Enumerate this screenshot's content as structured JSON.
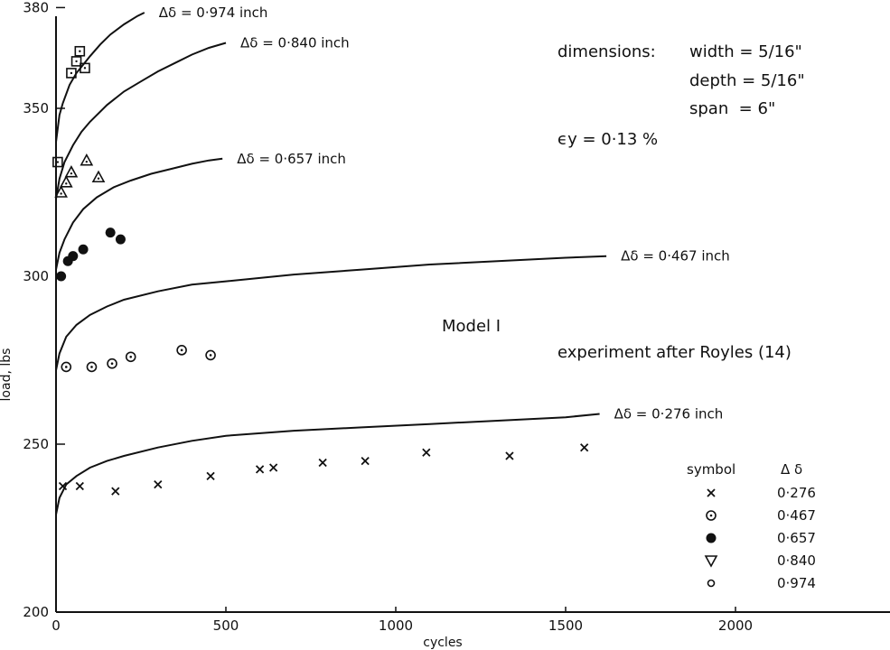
{
  "chart_data": {
    "type": "scatter",
    "xlabel": "cycles",
    "ylabel": "load, lbs",
    "xlim": [
      0,
      2500
    ],
    "ylim": [
      200,
      380
    ],
    "x_ticks": [
      "0",
      "500",
      "1000",
      "1500",
      "2000"
    ],
    "y_ticks": [
      "200",
      "250",
      "300",
      "350",
      "380"
    ],
    "series": [
      {
        "label": "0·276",
        "marker": "x",
        "x": [
          20,
          70,
          175,
          300,
          455,
          600,
          640,
          785,
          910,
          1090,
          1335,
          1555
        ],
        "y": [
          237.5,
          237.5,
          236,
          238,
          240.5,
          242.5,
          243,
          244.5,
          245,
          247.5,
          246.5,
          249
        ]
      },
      {
        "label": "0·467",
        "marker": "circle-dot",
        "x": [
          30,
          105,
          165,
          220,
          370,
          455
        ],
        "y": [
          273,
          273,
          274,
          276,
          278,
          276.5
        ]
      },
      {
        "label": "0·657",
        "marker": "filled-circle",
        "x": [
          15,
          35,
          50,
          80,
          160,
          190
        ],
        "y": [
          300,
          304.5,
          306,
          308,
          313,
          311
        ]
      },
      {
        "label": "0·840",
        "marker": "triangle-dot",
        "x": [
          15,
          30,
          45,
          90,
          125
        ],
        "y": [
          325,
          328,
          331,
          334.5,
          329.5
        ]
      },
      {
        "label": "0·974",
        "marker": "square-dot",
        "x": [
          5,
          45,
          60,
          70,
          85
        ],
        "y": [
          334,
          360.5,
          364,
          367,
          362
        ]
      }
    ],
    "curves": [
      {
        "label": "Δδ = 0·974 inch",
        "x": [
          0,
          10,
          20,
          40,
          60,
          80,
          100,
          130,
          160,
          200,
          240,
          260
        ],
        "y": [
          340,
          348,
          351.5,
          357,
          360.5,
          363,
          365.5,
          369,
          372,
          375,
          377.5,
          378.5
        ]
      },
      {
        "label": "Δδ = 0·840 inch",
        "x": [
          0,
          10,
          25,
          50,
          75,
          100,
          150,
          200,
          250,
          300,
          350,
          400,
          450,
          500
        ],
        "y": [
          323,
          329,
          334,
          339,
          343,
          346,
          351,
          355,
          358,
          361,
          363.5,
          366,
          368,
          369.5
        ]
      },
      {
        "label": "Δδ = 0·657 inch",
        "x": [
          0,
          10,
          25,
          50,
          80,
          120,
          170,
          220,
          280,
          340,
          400,
          450,
          490
        ],
        "y": [
          302,
          307,
          311,
          316,
          320,
          323.5,
          326.5,
          328.5,
          330.5,
          332,
          333.5,
          334.5,
          335
        ]
      },
      {
        "label": "Δδ = 0·467 inch",
        "x": [
          0,
          10,
          30,
          60,
          100,
          150,
          200,
          300,
          400,
          500,
          700,
          900,
          1100,
          1300,
          1500,
          1620
        ],
        "y": [
          272,
          277,
          282,
          285.5,
          288.5,
          291,
          293,
          295.5,
          297.5,
          298.5,
          300.5,
          302,
          303.5,
          304.5,
          305.5,
          306
        ]
      },
      {
        "label": "Δδ = 0·276 inch",
        "x": [
          0,
          10,
          30,
          60,
          100,
          150,
          200,
          300,
          400,
          500,
          700,
          900,
          1100,
          1300,
          1500,
          1600
        ],
        "y": [
          229,
          234,
          238,
          240.5,
          243,
          245,
          246.5,
          249,
          251,
          252.5,
          254,
          255,
          256,
          257,
          258,
          259
        ]
      }
    ],
    "annotations": {
      "dimensions_label": "dimensions:",
      "width": "width = 5/16\"",
      "depth": "depth = 5/16\"",
      "span": "span  = 6\"",
      "epsilon": "ϵy = 0·13 %",
      "model": "Model I",
      "experiment": "experiment after Royles (14)"
    },
    "legend": {
      "header_symbol": "symbol",
      "header_value": "Δ δ",
      "placement": "bottom-right",
      "entries": [
        {
          "marker": "x",
          "value": "0·276"
        },
        {
          "marker": "circle-dot",
          "value": "0·467"
        },
        {
          "marker": "filled-circle",
          "value": "0·657"
        },
        {
          "marker": "triangle-down",
          "value": "0·840"
        },
        {
          "marker": "small-circle",
          "value": "0·974"
        }
      ]
    },
    "grid": false
  }
}
